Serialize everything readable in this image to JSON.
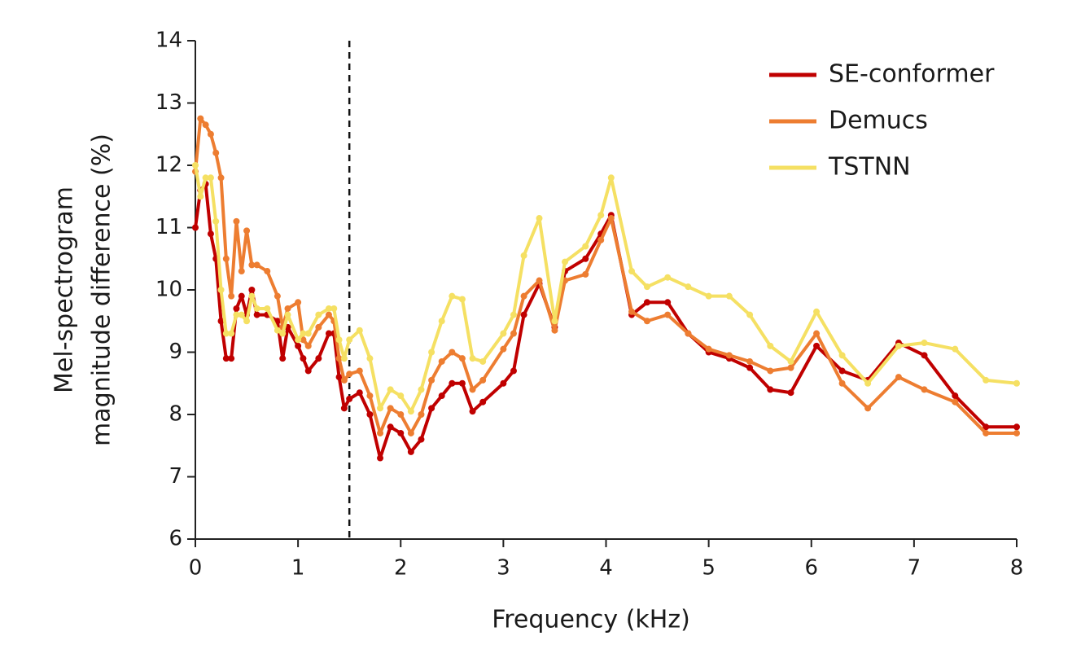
{
  "chart_data": {
    "type": "line",
    "xlabel": "Frequency (kHz)",
    "ylabel": [
      "Mel-spectrogram",
      "magnitude difference (%)"
    ],
    "x": [
      0,
      0.05,
      0.1,
      0.15,
      0.2,
      0.25,
      0.3,
      0.35,
      0.4,
      0.45,
      0.5,
      0.55,
      0.6,
      0.7,
      0.8,
      0.85,
      0.9,
      1.0,
      1.05,
      1.1,
      1.2,
      1.3,
      1.35,
      1.4,
      1.45,
      1.5,
      1.6,
      1.7,
      1.8,
      1.9,
      2.0,
      2.1,
      2.2,
      2.3,
      2.4,
      2.5,
      2.6,
      2.7,
      2.8,
      3.0,
      3.1,
      3.2,
      3.35,
      3.5,
      3.6,
      3.8,
      3.95,
      4.05,
      4.25,
      4.4,
      4.6,
      4.8,
      5.0,
      5.2,
      5.4,
      5.6,
      5.8,
      6.05,
      6.3,
      6.55,
      6.85,
      7.1,
      7.4,
      7.7,
      8.0
    ],
    "series": [
      {
        "name": "SE-conformer",
        "color": "#c00000",
        "values": [
          11.0,
          11.6,
          11.7,
          10.9,
          10.5,
          9.5,
          8.9,
          8.9,
          9.7,
          9.9,
          9.6,
          10.0,
          9.6,
          9.6,
          9.5,
          8.9,
          9.4,
          9.1,
          8.9,
          8.7,
          8.9,
          9.3,
          9.3,
          8.6,
          8.1,
          8.25,
          8.35,
          8.0,
          7.3,
          7.8,
          7.7,
          7.4,
          7.6,
          8.1,
          8.3,
          8.5,
          8.5,
          8.05,
          8.2,
          8.5,
          8.7,
          9.6,
          10.1,
          9.4,
          10.3,
          10.5,
          10.9,
          11.2,
          9.6,
          9.8,
          9.8,
          9.3,
          9.0,
          8.9,
          8.75,
          8.4,
          8.35,
          9.1,
          8.7,
          8.55,
          9.15,
          8.95,
          8.3,
          7.8,
          7.8
        ]
      },
      {
        "name": "Demucs",
        "color": "#ed7d31",
        "values": [
          11.9,
          12.75,
          12.65,
          12.5,
          12.2,
          11.8,
          10.5,
          9.9,
          11.1,
          10.3,
          10.95,
          10.4,
          10.4,
          10.3,
          9.9,
          9.4,
          9.7,
          9.8,
          9.2,
          9.1,
          9.4,
          9.6,
          9.5,
          8.9,
          8.55,
          8.65,
          8.7,
          8.3,
          7.7,
          8.1,
          8.0,
          7.7,
          8.0,
          8.55,
          8.85,
          9.0,
          8.9,
          8.4,
          8.55,
          9.05,
          9.3,
          9.9,
          10.15,
          9.35,
          10.15,
          10.25,
          10.8,
          11.15,
          9.65,
          9.5,
          9.6,
          9.3,
          9.05,
          8.95,
          8.85,
          8.7,
          8.75,
          9.3,
          8.5,
          8.1,
          8.6,
          8.4,
          8.2,
          7.7,
          7.7
        ]
      },
      {
        "name": "TSTNN",
        "color": "#f5e063",
        "values": [
          12.0,
          11.5,
          11.8,
          11.8,
          11.1,
          10.0,
          9.3,
          9.3,
          9.6,
          9.6,
          9.5,
          9.9,
          9.7,
          9.7,
          9.35,
          9.3,
          9.6,
          9.2,
          9.3,
          9.3,
          9.6,
          9.7,
          9.7,
          9.2,
          8.9,
          9.2,
          9.35,
          8.9,
          8.1,
          8.4,
          8.3,
          8.05,
          8.4,
          9.0,
          9.5,
          9.9,
          9.85,
          8.9,
          8.85,
          9.3,
          9.6,
          10.55,
          11.15,
          9.5,
          10.45,
          10.7,
          11.2,
          11.8,
          10.3,
          10.05,
          10.2,
          10.05,
          9.9,
          9.9,
          9.6,
          9.1,
          8.85,
          9.65,
          8.95,
          8.5,
          9.1,
          9.15,
          9.05,
          8.55,
          8.5
        ]
      }
    ],
    "xlim": [
      0,
      8
    ],
    "xticks": [
      0,
      1,
      2,
      3,
      4,
      5,
      6,
      7,
      8
    ],
    "ylim": [
      6,
      14
    ],
    "yticks": [
      6,
      7,
      8,
      9,
      10,
      11,
      12,
      13,
      14
    ],
    "reference_x": 1.5,
    "legend": "upper right"
  }
}
